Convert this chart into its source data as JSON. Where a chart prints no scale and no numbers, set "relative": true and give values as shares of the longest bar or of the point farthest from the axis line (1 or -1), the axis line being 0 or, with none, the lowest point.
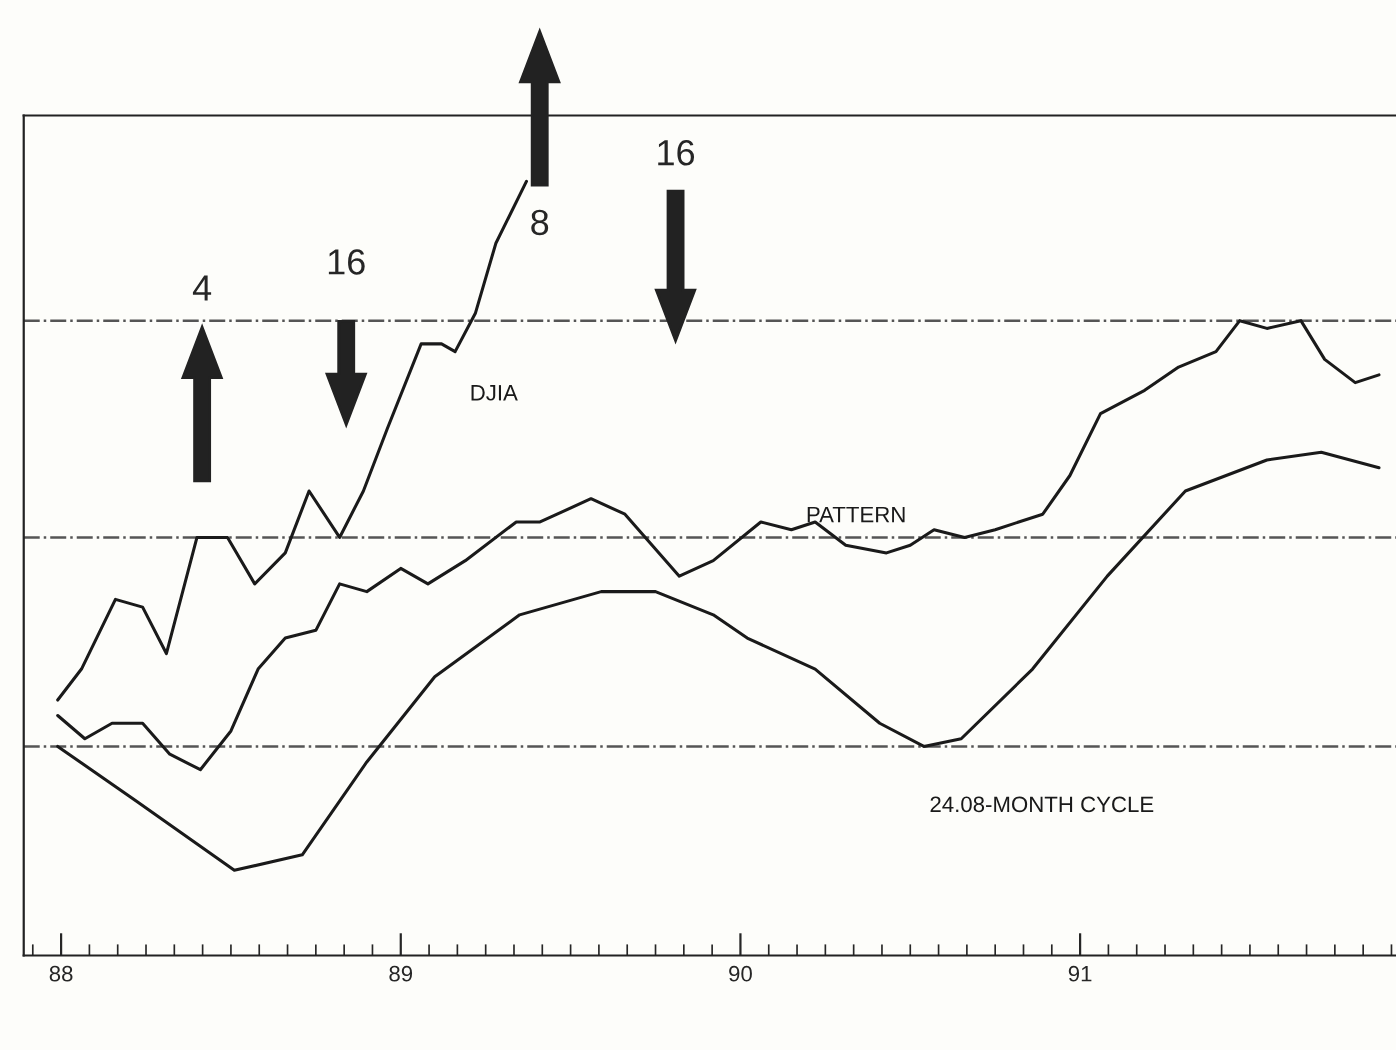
{
  "chart_data": {
    "type": "line",
    "relative": true,
    "legend": false,
    "grid": false,
    "marker": "none",
    "line_style": "solid",
    "xlim": [
      87.89,
      91.93
    ],
    "xticks": [
      88,
      89,
      90,
      91
    ],
    "series": [
      {
        "name": "DJIA",
        "color": "#1a1a1a",
        "x": [
          87.99,
          88.06,
          88.16,
          88.24,
          88.31,
          88.4,
          88.49,
          88.57,
          88.66,
          88.73,
          88.82,
          88.89,
          88.96,
          89.06,
          89.12,
          89.16,
          89.22,
          89.28,
          89.37
        ],
        "values": [
          0.33,
          0.37,
          0.46,
          0.45,
          0.39,
          0.54,
          0.54,
          0.48,
          0.52,
          0.6,
          0.54,
          0.6,
          0.68,
          0.79,
          0.79,
          0.78,
          0.83,
          0.92,
          1.0
        ]
      },
      {
        "name": "PATTERN",
        "color": "#1a1a1a",
        "x": [
          87.99,
          88.07,
          88.15,
          88.24,
          88.32,
          88.41,
          88.5,
          88.58,
          88.66,
          88.75,
          88.82,
          88.9,
          89.0,
          89.08,
          89.19,
          89.34,
          89.41,
          89.56,
          89.66,
          89.74,
          89.82,
          89.92,
          90.06,
          90.15,
          90.22,
          90.31,
          90.43,
          90.5,
          90.57,
          90.66,
          90.75,
          90.89,
          90.97,
          91.06,
          91.19,
          91.29,
          91.4,
          91.47,
          91.55,
          91.65,
          91.72,
          91.81,
          91.88
        ],
        "values": [
          0.31,
          0.28,
          0.3,
          0.3,
          0.26,
          0.24,
          0.29,
          0.37,
          0.41,
          0.42,
          0.48,
          0.47,
          0.5,
          0.48,
          0.51,
          0.56,
          0.56,
          0.59,
          0.57,
          0.53,
          0.49,
          0.51,
          0.56,
          0.55,
          0.56,
          0.53,
          0.52,
          0.53,
          0.55,
          0.54,
          0.55,
          0.57,
          0.62,
          0.7,
          0.73,
          0.76,
          0.78,
          0.82,
          0.81,
          0.82,
          0.77,
          0.74,
          0.75
        ]
      },
      {
        "name": "24.08-MONTH CYCLE",
        "color": "#1a1a1a",
        "x": [
          87.99,
          88.22,
          88.51,
          88.71,
          88.9,
          89.1,
          89.35,
          89.59,
          89.75,
          89.92,
          90.02,
          90.22,
          90.41,
          90.54,
          90.65,
          90.86,
          91.08,
          91.31,
          91.55,
          91.71,
          91.88
        ],
        "values": [
          0.27,
          0.2,
          0.11,
          0.13,
          0.25,
          0.36,
          0.44,
          0.47,
          0.47,
          0.44,
          0.41,
          0.37,
          0.3,
          0.27,
          0.28,
          0.37,
          0.49,
          0.6,
          0.64,
          0.65,
          0.63
        ]
      }
    ],
    "ref_lines": [
      {
        "axis": "y",
        "value": 0.82,
        "color": "#555555",
        "line_style": "dashdot"
      },
      {
        "axis": "y",
        "value": 0.54,
        "color": "#555555",
        "line_style": "dashdot"
      },
      {
        "axis": "y",
        "value": 0.27,
        "color": "#555555",
        "line_style": "dashdot"
      }
    ],
    "annotations": [
      "4",
      "16",
      "8",
      "16"
    ]
  }
}
